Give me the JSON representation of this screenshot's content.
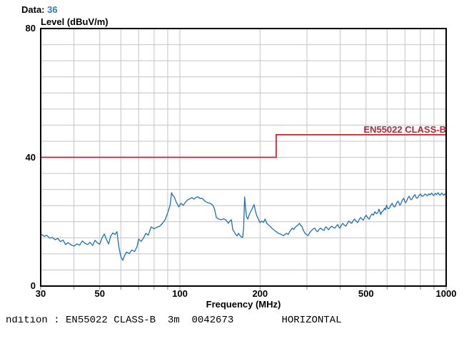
{
  "header": {
    "data_label": "Data:",
    "data_value": "36",
    "data_value_color": "#3377CC"
  },
  "footer": {
    "status_line": "ndition : EN55022 CLASS-B  3m  0042673        HORIZONTAL"
  },
  "chart_data": {
    "type": "line",
    "title": "Level (dBuV/m)",
    "xlabel": "Frequency (MHz)",
    "x_scale": "log",
    "xlim": [
      30,
      1000
    ],
    "ylim": [
      0,
      80
    ],
    "grid": true,
    "y_gridline_step": 5,
    "x_gridlines": [
      40,
      50,
      60,
      70,
      80,
      90,
      100,
      200,
      300,
      400,
      500,
      600,
      700,
      800,
      900
    ],
    "x_tick_labels": [
      "30",
      "50",
      "100",
      "200",
      "500",
      "1000"
    ],
    "x_tick_values": [
      30,
      50,
      100,
      200,
      500,
      1000
    ],
    "y_tick_labels": [
      "0",
      "40",
      "80"
    ],
    "y_tick_values": [
      0,
      40,
      80
    ],
    "limit_label": "EN55022 CLASS-B",
    "colors": {
      "limit": "#C22233",
      "trace": "#1F6FB5",
      "grid": "#C4C4C4",
      "frame": "#000000",
      "tick": "#808080"
    },
    "series": [
      {
        "name": "EN55022 CLASS-B limit",
        "color": "#C22233",
        "points": [
          [
            30,
            40
          ],
          [
            230,
            40
          ],
          [
            230,
            47
          ],
          [
            1000,
            47
          ]
        ]
      },
      {
        "name": "measured-emission-trace",
        "color": "#1F6FB5",
        "points": [
          [
            30,
            16.2
          ],
          [
            31,
            15.4
          ],
          [
            31.6,
            15.8
          ],
          [
            32.4,
            14.9
          ],
          [
            33.2,
            15.1
          ],
          [
            34,
            14.4
          ],
          [
            34.8,
            14.8
          ],
          [
            35.6,
            13.8
          ],
          [
            36.4,
            14.3
          ],
          [
            37.2,
            12.9
          ],
          [
            38,
            13.5
          ],
          [
            39,
            12.8
          ],
          [
            40,
            12.4
          ],
          [
            41,
            13.1
          ],
          [
            42,
            12.7
          ],
          [
            43,
            14
          ],
          [
            44,
            13.3
          ],
          [
            45,
            12.9
          ],
          [
            46,
            13.6
          ],
          [
            47,
            12.6
          ],
          [
            48,
            14.2
          ],
          [
            49,
            13.4
          ],
          [
            50,
            13
          ],
          [
            51,
            15
          ],
          [
            52,
            16.2
          ],
          [
            53,
            14.4
          ],
          [
            54,
            13.1
          ],
          [
            55,
            15.6
          ],
          [
            56,
            16.5
          ],
          [
            57,
            16
          ],
          [
            58,
            16.9
          ],
          [
            59,
            12
          ],
          [
            60,
            9.1
          ],
          [
            61,
            8
          ],
          [
            62,
            9.5
          ],
          [
            63,
            10.6
          ],
          [
            64.5,
            10.1
          ],
          [
            66,
            11.2
          ],
          [
            67.5,
            10.7
          ],
          [
            69,
            12.2
          ],
          [
            70,
            14.6
          ],
          [
            71.5,
            13.9
          ],
          [
            73,
            14.9
          ],
          [
            74.5,
            16.4
          ],
          [
            76,
            15.8
          ],
          [
            78,
            18.4
          ],
          [
            80,
            17.8
          ],
          [
            82,
            18.3
          ],
          [
            84,
            18.6
          ],
          [
            86,
            19.5
          ],
          [
            88,
            20.6
          ],
          [
            90,
            22.8
          ],
          [
            92,
            25.3
          ],
          [
            93,
            29
          ],
          [
            94,
            28.1
          ],
          [
            95,
            27.9
          ],
          [
            97,
            26
          ],
          [
            99,
            24.6
          ],
          [
            101,
            25.7
          ],
          [
            103,
            25.1
          ],
          [
            105,
            26.1
          ],
          [
            107,
            26.8
          ],
          [
            109,
            27.1
          ],
          [
            111,
            27.5
          ],
          [
            113,
            27
          ],
          [
            115,
            27.6
          ],
          [
            117,
            27.7
          ],
          [
            119,
            27.2
          ],
          [
            121,
            27.3
          ],
          [
            123,
            26.7
          ],
          [
            125,
            26.2
          ],
          [
            128,
            25.8
          ],
          [
            130,
            25.7
          ],
          [
            133,
            25.1
          ],
          [
            135,
            23.9
          ],
          [
            137,
            21.3
          ],
          [
            140,
            20.8
          ],
          [
            143,
            20.6
          ],
          [
            146,
            20.9
          ],
          [
            149,
            20.5
          ],
          [
            152,
            19.5
          ],
          [
            154,
            20.2
          ],
          [
            156,
            20.6
          ],
          [
            158,
            17.5
          ],
          [
            160,
            16.8
          ],
          [
            162,
            16
          ],
          [
            164,
            15.6
          ],
          [
            166,
            16.4
          ],
          [
            168,
            15.7
          ],
          [
            170,
            15.3
          ],
          [
            172,
            15.1
          ],
          [
            173.5,
            18
          ],
          [
            175,
            27.7
          ],
          [
            176.5,
            24
          ],
          [
            178,
            21.5
          ],
          [
            180,
            20.8
          ],
          [
            182,
            22.1
          ],
          [
            184,
            23
          ],
          [
            186,
            23.6
          ],
          [
            188,
            24.6
          ],
          [
            190,
            25.3
          ],
          [
            192,
            23.4
          ],
          [
            194,
            22
          ],
          [
            196,
            21.3
          ],
          [
            198,
            20.4
          ],
          [
            200,
            19.7
          ],
          [
            203,
            20.2
          ],
          [
            206,
            19.8
          ],
          [
            209,
            20.8
          ],
          [
            212,
            19.5
          ],
          [
            215,
            19
          ],
          [
            218,
            18.6
          ],
          [
            222,
            17.9
          ],
          [
            226,
            17.4
          ],
          [
            230,
            16.9
          ],
          [
            234,
            16.4
          ],
          [
            238,
            16.2
          ],
          [
            242,
            15.9
          ],
          [
            245,
            15.7
          ],
          [
            249,
            16.1
          ],
          [
            252,
            16.4
          ],
          [
            255,
            16
          ],
          [
            258,
            16.8
          ],
          [
            261,
            17.4
          ],
          [
            264,
            18
          ],
          [
            268,
            17.6
          ],
          [
            271,
            18.3
          ],
          [
            274,
            18.6
          ],
          [
            278,
            19
          ],
          [
            281,
            19.5
          ],
          [
            284,
            18.9
          ],
          [
            287,
            18.6
          ],
          [
            291,
            17.3
          ],
          [
            294,
            16.6
          ],
          [
            297,
            16.2
          ],
          [
            300,
            15.9
          ],
          [
            303,
            15.7
          ],
          [
            307,
            16.5
          ],
          [
            310,
            17
          ],
          [
            313,
            17.3
          ],
          [
            317,
            17.8
          ],
          [
            321,
            18
          ],
          [
            325,
            17.2
          ],
          [
            329,
            16.9
          ],
          [
            333,
            17.6
          ],
          [
            338,
            18
          ],
          [
            343,
            17.5
          ],
          [
            348,
            17.3
          ],
          [
            351,
            18.1
          ],
          [
            354,
            18.4
          ],
          [
            358,
            17.9
          ],
          [
            362,
            17.5
          ],
          [
            367,
            18.2
          ],
          [
            372,
            18.6
          ],
          [
            377,
            18.2
          ],
          [
            382,
            18
          ],
          [
            387,
            18.7
          ],
          [
            392,
            19.1
          ],
          [
            395,
            18.4
          ],
          [
            399,
            18
          ],
          [
            404,
            18.9
          ],
          [
            409,
            19.5
          ],
          [
            414,
            19
          ],
          [
            420,
            18.6
          ],
          [
            425,
            19.4
          ],
          [
            431,
            20.2
          ],
          [
            436,
            19.8
          ],
          [
            442,
            19.5
          ],
          [
            447,
            20.3
          ],
          [
            453,
            20.8
          ],
          [
            459,
            20.2
          ],
          [
            465,
            19.7
          ],
          [
            471,
            20.6
          ],
          [
            477,
            21.3
          ],
          [
            483,
            20.8
          ],
          [
            489,
            20.5
          ],
          [
            495,
            21.5
          ],
          [
            501,
            22
          ],
          [
            507,
            21.2
          ],
          [
            514,
            20.8
          ],
          [
            520,
            21.8
          ],
          [
            527,
            22.4
          ],
          [
            533,
            22
          ],
          [
            540,
            23.1
          ],
          [
            547,
            22.5
          ],
          [
            554,
            22.8
          ],
          [
            559,
            23.9
          ],
          [
            564,
            23.1
          ],
          [
            568,
            22.2
          ],
          [
            572,
            23
          ],
          [
            577,
            23.2
          ],
          [
            582,
            23.5
          ],
          [
            587,
            24.2
          ],
          [
            592,
            23.7
          ],
          [
            597,
            25.1
          ],
          [
            602,
            24.3
          ],
          [
            607,
            24
          ],
          [
            612,
            24.2
          ],
          [
            617,
            24.8
          ],
          [
            622,
            25.3
          ],
          [
            627,
            25.7
          ],
          [
            633,
            25
          ],
          [
            638,
            24.6
          ],
          [
            643,
            24.7
          ],
          [
            649,
            25.5
          ],
          [
            654,
            26
          ],
          [
            659,
            26.4
          ],
          [
            665,
            25.8
          ],
          [
            670,
            25.1
          ],
          [
            675,
            25.4
          ],
          [
            681,
            26.3
          ],
          [
            686,
            26.8
          ],
          [
            692,
            27.3
          ],
          [
            698,
            26.5
          ],
          [
            703,
            25.9
          ],
          [
            709,
            26.2
          ],
          [
            715,
            27
          ],
          [
            720,
            27.5
          ],
          [
            726,
            27.9
          ],
          [
            732,
            27.2
          ],
          [
            738,
            26.8
          ],
          [
            744,
            27
          ],
          [
            750,
            27.6
          ],
          [
            756,
            28
          ],
          [
            763,
            28.4
          ],
          [
            769,
            27.7
          ],
          [
            775,
            27.3
          ],
          [
            782,
            27.4
          ],
          [
            789,
            28
          ],
          [
            795,
            28.3
          ],
          [
            801,
            28.6
          ],
          [
            808,
            28
          ],
          [
            814,
            27.9
          ],
          [
            821,
            28
          ],
          [
            828,
            28.3
          ],
          [
            834,
            28.6
          ],
          [
            841,
            28.4
          ],
          [
            848,
            28
          ],
          [
            855,
            28.3
          ],
          [
            862,
            28.7
          ],
          [
            869,
            28.3
          ],
          [
            876,
            28.6
          ],
          [
            883,
            28.9
          ],
          [
            890,
            28.4
          ],
          [
            897,
            28.1
          ],
          [
            904,
            28.5
          ],
          [
            912,
            28.8
          ],
          [
            919,
            28.4
          ],
          [
            926,
            28.7
          ],
          [
            934,
            29
          ],
          [
            941,
            28.5
          ],
          [
            948,
            28.2
          ],
          [
            956,
            28.6
          ],
          [
            963,
            28.9
          ],
          [
            971,
            28.5
          ],
          [
            979,
            28.2
          ],
          [
            987,
            28.6
          ],
          [
            994,
            28.4
          ],
          [
            1000,
            28.7
          ]
        ]
      }
    ]
  }
}
